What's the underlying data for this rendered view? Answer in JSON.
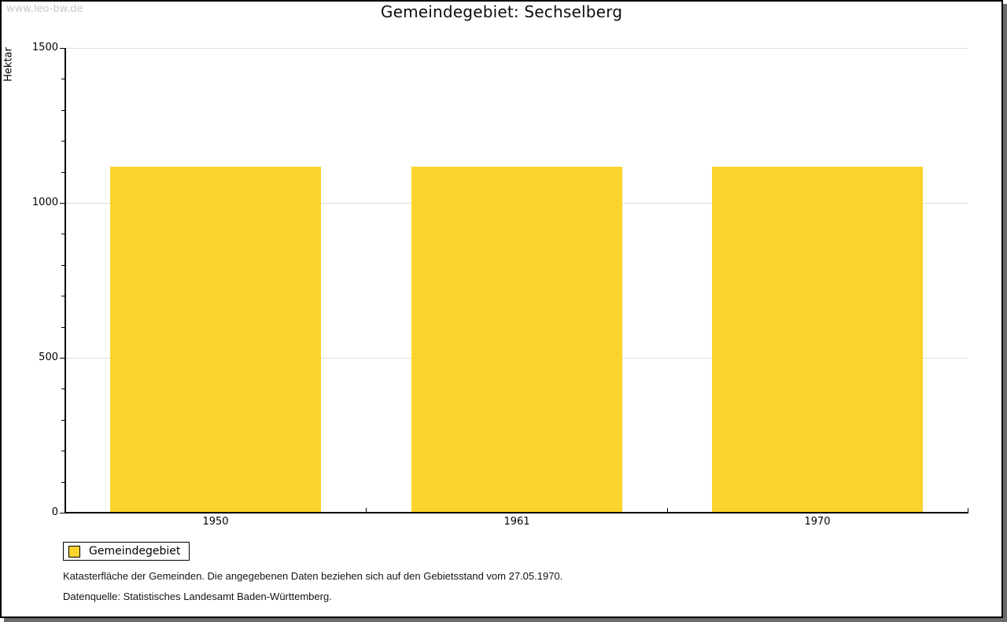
{
  "watermark": "www.leo-bw.de",
  "header": {
    "title": "Gemeindegebiet: Sechselberg"
  },
  "chart_data": {
    "type": "bar",
    "title": "Gemeindegebiet: Sechselberg",
    "categories": [
      "1950",
      "1961",
      "1970"
    ],
    "series": [
      {
        "name": "Gemeindegebiet",
        "values": [
          1116,
          1116,
          1116
        ]
      }
    ],
    "xlabel": "",
    "ylabel": "Hektar",
    "ylim": [
      0,
      1500
    ],
    "y_major_step": 500,
    "y_minor_step": 100,
    "y_major_tick_labels": [
      "0",
      "500",
      "1000",
      "1500"
    ],
    "grid": "horizontal gridlines at major ticks",
    "legend_position": "bottom-left",
    "bar_color": "#FCD32D"
  },
  "legend": {
    "items": [
      {
        "label": "Gemeindegebiet",
        "color": "#FCD32D"
      }
    ]
  },
  "footnotes": {
    "line1": "Katasterfläche der Gemeinden. Die angegebenen Daten beziehen sich auf den Gebietsstand vom 27.05.1970.",
    "line2": "Datenquelle: Statistisches Landesamt Baden-Württemberg."
  },
  "colors": {
    "bar": "#FCD32D",
    "gridline": "#DEDEDE",
    "axis": "#000000",
    "frame_shadow": "#6B6B6B",
    "watermark": "#C9C9C9",
    "text": "#000000"
  }
}
